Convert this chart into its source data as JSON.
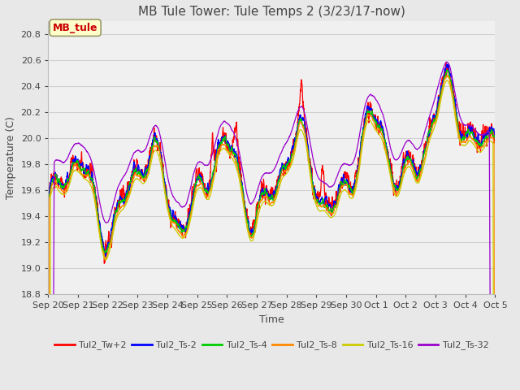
{
  "title": "MB Tule Tower: Tule Temps 2 (3/23/17-now)",
  "xlabel": "Time",
  "ylabel": "Temperature (C)",
  "ylim": [
    18.8,
    20.9
  ],
  "tick_labels": [
    "Sep 20",
    "Sep 21",
    "Sep 22",
    "Sep 23",
    "Sep 24",
    "Sep 25",
    "Sep 26",
    "Sep 27",
    "Sep 28",
    "Sep 29",
    "Sep 30",
    "Oct 1",
    "Oct 2",
    "Oct 3",
    "Oct 4",
    "Oct 5"
  ],
  "legend_label": "MB_tule",
  "series_labels": [
    "Tul2_Tw+2",
    "Tul2_Ts-2",
    "Tul2_Ts-4",
    "Tul2_Ts-8",
    "Tul2_Ts-16",
    "Tul2_Ts-32"
  ],
  "series_colors": [
    "#ff0000",
    "#0000ff",
    "#00cc00",
    "#ff8800",
    "#cccc00",
    "#9900cc"
  ],
  "background_color": "#e8e8e8",
  "plot_bg_color": "#f0f0f0",
  "grid_color": "#d0d0d0",
  "title_fontsize": 11,
  "axis_fontsize": 9,
  "tick_fontsize": 8
}
